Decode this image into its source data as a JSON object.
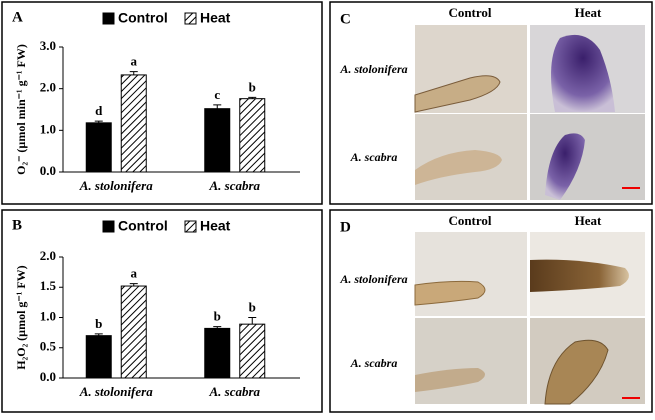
{
  "chart_data": [
    {
      "type": "bar",
      "panel_label": "A",
      "ylabel": "O₂⁻ (µmol min⁻¹ g⁻¹ FW)",
      "categories": [
        "A. stolonifera",
        "A. scabra"
      ],
      "series": [
        {
          "name": "Control",
          "color": "#000000",
          "values": [
            1.18,
            1.52
          ],
          "errors": [
            0.04,
            0.09
          ],
          "letters": [
            "d",
            "c"
          ]
        },
        {
          "name": "Heat",
          "color": "hatch",
          "values": [
            2.33,
            1.76
          ],
          "errors": [
            0.08,
            0.03
          ],
          "letters": [
            "a",
            "b"
          ]
        }
      ],
      "ylim": [
        0,
        3
      ],
      "yticks": [
        {
          "value": 0,
          "label": "0.0"
        },
        {
          "value": 1,
          "label": "1.0"
        },
        {
          "value": 2,
          "label": "2.0"
        },
        {
          "value": 3,
          "label": "3.0"
        }
      ]
    },
    {
      "type": "bar",
      "panel_label": "B",
      "ylabel": "H₂O₂ (µmol g⁻¹ FW)",
      "categories": [
        "A. stolonifera",
        "A. scabra"
      ],
      "series": [
        {
          "name": "Control",
          "color": "#000000",
          "values": [
            0.7,
            0.82
          ],
          "errors": [
            0.03,
            0.03
          ],
          "letters": [
            "b",
            "b"
          ]
        },
        {
          "name": "Heat",
          "color": "hatch",
          "values": [
            1.52,
            0.89
          ],
          "errors": [
            0.04,
            0.11
          ],
          "letters": [
            "a",
            "b"
          ]
        }
      ],
      "ylim": [
        0,
        2
      ],
      "yticks": [
        {
          "value": 0,
          "label": "0.0"
        },
        {
          "value": 0.5,
          "label": "0.5"
        },
        {
          "value": 1,
          "label": "1.0"
        },
        {
          "value": 1.5,
          "label": "1.5"
        },
        {
          "value": 2,
          "label": "2.0"
        }
      ]
    }
  ],
  "images": [
    {
      "panel_label": "C",
      "columns": [
        "Control",
        "Heat"
      ],
      "rows": [
        "A. stolonifera",
        "A. scabra"
      ]
    },
    {
      "panel_label": "D",
      "columns": [
        "Control",
        "Heat"
      ],
      "rows": [
        "A. stolonifera",
        "A. scabra"
      ]
    }
  ]
}
